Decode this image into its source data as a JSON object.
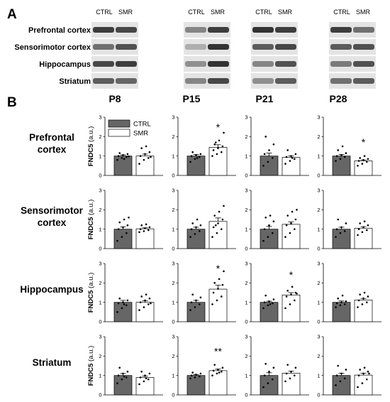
{
  "panel_a": {
    "letter": "A",
    "column_labels": [
      "CTRL",
      "SMR"
    ],
    "regions": [
      "Prefrontal cortex",
      "Sensorimotor cortex",
      "Hippocampus",
      "Striatum"
    ]
  },
  "panel_b": {
    "letter": "B"
  },
  "colors": {
    "ctrl": "#666666",
    "smr": "#ffffff",
    "axis": "#000000"
  },
  "chart_data": {
    "type": "bar",
    "ages": [
      "P8",
      "P15",
      "P21",
      "P28"
    ],
    "regions": [
      "Prefrontal\ncortex",
      "Sensorimotor\ncortex",
      "Hippocampus",
      "Striatum"
    ],
    "ylabel": "FNDC5 (a.u.)",
    "ylim": [
      0,
      3
    ],
    "yticks": [
      0,
      1,
      2,
      3
    ],
    "legend": [
      {
        "name": "CTRL",
        "color": "#666666"
      },
      {
        "name": "SMR",
        "color": "#ffffff"
      }
    ],
    "legend_position": "top-left of first panel",
    "groups": [
      {
        "region": 0,
        "age": 0,
        "ctrl": 1.0,
        "smr": 1.0,
        "ctrl_sem": 0.06,
        "smr_sem": 0.1,
        "sig": "",
        "ctrl_points": [
          0.8,
          0.9,
          0.95,
          1.0,
          1.05,
          1.1,
          1.15,
          0.85,
          0.98
        ],
        "smr_points": [
          0.6,
          0.8,
          0.9,
          1.0,
          1.1,
          1.2,
          1.4,
          1.5,
          0.95
        ]
      },
      {
        "region": 0,
        "age": 1,
        "ctrl": 1.0,
        "smr": 1.45,
        "ctrl_sem": 0.08,
        "smr_sem": 0.13,
        "sig": "*",
        "ctrl_points": [
          0.7,
          0.85,
          0.95,
          1.0,
          1.05,
          1.1,
          1.2,
          0.9
        ],
        "smr_points": [
          1.0,
          1.1,
          1.2,
          1.3,
          1.4,
          1.5,
          1.6,
          1.8,
          2.2,
          1.7
        ]
      },
      {
        "region": 0,
        "age": 2,
        "ctrl": 1.0,
        "smr": 0.93,
        "ctrl_sem": 0.15,
        "smr_sem": 0.08,
        "sig": "",
        "ctrl_points": [
          0.5,
          0.7,
          0.9,
          1.1,
          1.3,
          1.6,
          2.0
        ],
        "smr_points": [
          0.6,
          0.75,
          0.85,
          0.95,
          1.0,
          1.1,
          1.3,
          0.9
        ]
      },
      {
        "region": 0,
        "age": 3,
        "ctrl": 1.0,
        "smr": 0.75,
        "ctrl_sem": 0.08,
        "smr_sem": 0.05,
        "sig": "*",
        "ctrl_points": [
          0.75,
          0.85,
          0.95,
          1.0,
          1.05,
          1.15,
          1.3,
          1.5
        ],
        "smr_points": [
          0.5,
          0.6,
          0.7,
          0.75,
          0.8,
          0.85,
          0.9,
          1.0
        ]
      },
      {
        "region": 1,
        "age": 0,
        "ctrl": 1.0,
        "smr": 1.02,
        "ctrl_sem": 0.12,
        "smr_sem": 0.05,
        "sig": "",
        "ctrl_points": [
          0.4,
          0.6,
          0.8,
          1.0,
          1.1,
          1.2,
          1.35,
          1.5,
          1.6
        ],
        "smr_points": [
          0.85,
          0.9,
          0.95,
          1.0,
          1.05,
          1.1,
          1.2,
          1.25
        ]
      },
      {
        "region": 1,
        "age": 1,
        "ctrl": 1.0,
        "smr": 1.4,
        "ctrl_sem": 0.1,
        "smr_sem": 0.18,
        "sig": "",
        "ctrl_points": [
          0.6,
          0.75,
          0.9,
          1.0,
          1.1,
          1.2,
          1.3,
          1.5
        ],
        "smr_points": [
          0.6,
          0.8,
          1.0,
          1.1,
          1.3,
          1.5,
          1.7,
          1.9,
          2.2,
          1.2
        ]
      },
      {
        "region": 1,
        "age": 2,
        "ctrl": 1.0,
        "smr": 1.25,
        "ctrl_sem": 0.14,
        "smr_sem": 0.13,
        "sig": "",
        "ctrl_points": [
          0.4,
          0.6,
          0.8,
          1.0,
          1.2,
          1.4,
          1.6,
          1.7
        ],
        "smr_points": [
          0.6,
          0.8,
          1.0,
          1.2,
          1.3,
          1.5,
          1.7,
          1.9,
          2.0
        ]
      },
      {
        "region": 1,
        "age": 3,
        "ctrl": 1.0,
        "smr": 1.05,
        "ctrl_sem": 0.1,
        "smr_sem": 0.08,
        "sig": "",
        "ctrl_points": [
          0.6,
          0.8,
          0.9,
          1.0,
          1.1,
          1.3,
          1.5
        ],
        "smr_points": [
          0.7,
          0.85,
          0.95,
          1.0,
          1.1,
          1.2,
          1.3,
          1.4
        ]
      },
      {
        "region": 2,
        "age": 0,
        "ctrl": 1.0,
        "smr": 1.0,
        "ctrl_sem": 0.1,
        "smr_sem": 0.08,
        "sig": "",
        "ctrl_points": [
          0.5,
          0.7,
          0.85,
          0.95,
          1.0,
          1.1,
          1.2,
          0.9
        ],
        "smr_points": [
          0.6,
          0.75,
          0.9,
          1.0,
          1.1,
          1.2,
          1.3,
          1.4,
          0.95
        ]
      },
      {
        "region": 2,
        "age": 1,
        "ctrl": 1.0,
        "smr": 1.68,
        "ctrl_sem": 0.1,
        "smr_sem": 0.2,
        "sig": "*",
        "ctrl_points": [
          0.6,
          0.75,
          0.9,
          1.0,
          1.1,
          1.25,
          1.4
        ],
        "smr_points": [
          0.9,
          1.1,
          1.3,
          1.5,
          1.7,
          1.9,
          2.0,
          2.2,
          2.6
        ]
      },
      {
        "region": 2,
        "age": 2,
        "ctrl": 1.0,
        "smr": 1.38,
        "ctrl_sem": 0.06,
        "smr_sem": 0.12,
        "sig": "*",
        "ctrl_points": [
          0.7,
          0.85,
          0.95,
          1.0,
          1.05,
          1.15,
          1.35,
          0.9
        ],
        "smr_points": [
          0.7,
          0.9,
          1.1,
          1.3,
          1.4,
          1.5,
          1.6,
          1.8,
          1.45
        ]
      },
      {
        "region": 2,
        "age": 3,
        "ctrl": 1.0,
        "smr": 1.12,
        "ctrl_sem": 0.07,
        "smr_sem": 0.08,
        "sig": "",
        "ctrl_points": [
          0.75,
          0.85,
          0.9,
          0.95,
          1.0,
          1.05,
          1.2,
          1.35
        ],
        "smr_points": [
          0.75,
          0.9,
          1.0,
          1.1,
          1.2,
          1.3,
          1.4,
          1.5
        ]
      },
      {
        "region": 3,
        "age": 0,
        "ctrl": 1.0,
        "smr": 0.9,
        "ctrl_sem": 0.1,
        "smr_sem": 0.07,
        "sig": "",
        "ctrl_points": [
          0.6,
          0.8,
          0.9,
          1.0,
          1.1,
          1.2,
          1.4,
          0.95
        ],
        "smr_points": [
          0.55,
          0.7,
          0.8,
          0.9,
          1.0,
          1.1,
          1.2,
          0.85
        ]
      },
      {
        "region": 3,
        "age": 1,
        "ctrl": 1.0,
        "smr": 1.25,
        "ctrl_sem": 0.04,
        "smr_sem": 0.08,
        "sig": "**",
        "ctrl_points": [
          0.85,
          0.9,
          0.95,
          1.0,
          1.05,
          1.1,
          1.15
        ],
        "smr_points": [
          1.0,
          1.1,
          1.2,
          1.25,
          1.3,
          1.4,
          1.55,
          1.15
        ]
      },
      {
        "region": 3,
        "age": 2,
        "ctrl": 1.0,
        "smr": 1.12,
        "ctrl_sem": 0.14,
        "smr_sem": 0.1,
        "sig": "",
        "ctrl_points": [
          0.4,
          0.6,
          0.8,
          1.0,
          1.2,
          1.4,
          1.6
        ],
        "smr_points": [
          0.7,
          0.85,
          1.0,
          1.1,
          1.2,
          1.4,
          1.55
        ]
      },
      {
        "region": 3,
        "age": 3,
        "ctrl": 1.0,
        "smr": 1.02,
        "ctrl_sem": 0.12,
        "smr_sem": 0.1,
        "sig": "",
        "ctrl_points": [
          0.5,
          0.7,
          0.85,
          1.0,
          1.1,
          1.3,
          1.5
        ],
        "smr_points": [
          0.4,
          0.6,
          0.8,
          1.0,
          1.1,
          1.2,
          1.3,
          1.4,
          1.1
        ]
      }
    ]
  }
}
